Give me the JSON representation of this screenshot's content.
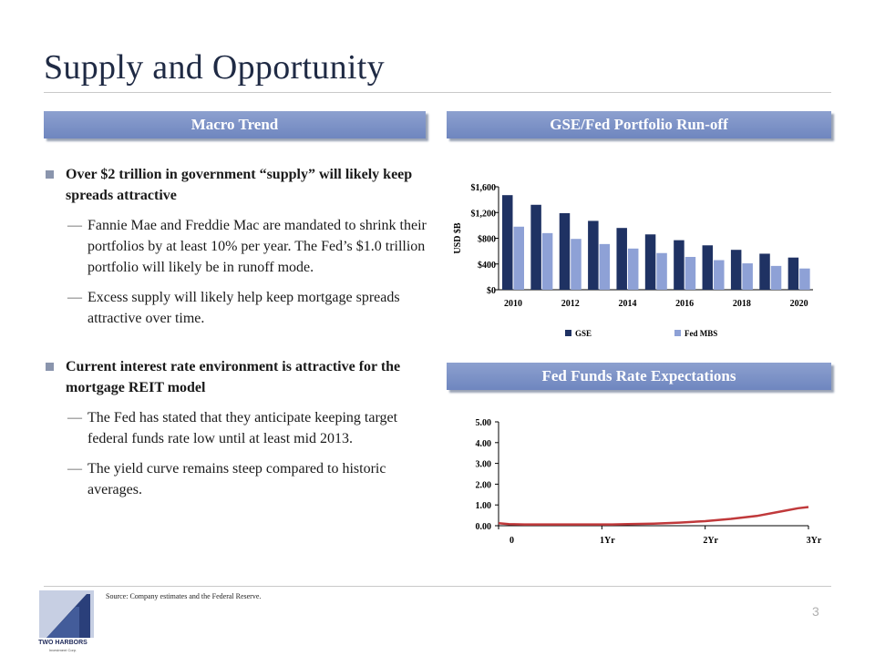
{
  "page": {
    "title": "Supply and Opportunity",
    "page_number": "3"
  },
  "left": {
    "header": "Macro Trend",
    "bullets": [
      {
        "text": "Over $2 trillion in government “supply” will likely keep spreads attractive",
        "subs": [
          "Fannie Mae and Freddie Mac are mandated to shrink their portfolios by at least 10% per year. The Fed’s $1.0 trillion portfolio will likely be in runoff mode.",
          "Excess supply will likely help keep mortgage spreads attractive over time."
        ]
      },
      {
        "text": "Current interest rate environment is attractive for the mortgage REIT model",
        "subs": [
          "The Fed has stated that they anticipate keeping target federal funds rate low until at least mid 2013.",
          "The yield curve remains steep compared to historic averages."
        ]
      }
    ]
  },
  "right": {
    "header1": "GSE/Fed Portfolio Run-off",
    "header2": "Fed Funds Rate Expectations"
  },
  "chart_data": [
    {
      "type": "bar",
      "ylabel": "USD $B",
      "ylim": [
        0,
        1600
      ],
      "yticks": [
        "$0",
        "$400",
        "$800",
        "$1,200",
        "$1,600"
      ],
      "categories": [
        "2010",
        "2011",
        "2012",
        "2013",
        "2014",
        "2015",
        "2016",
        "2017",
        "2018",
        "2019",
        "2020"
      ],
      "xtick_labels": [
        "2010",
        "2012",
        "2014",
        "2016",
        "2018",
        "2020"
      ],
      "series": [
        {
          "name": "GSE",
          "color": "#1f3263",
          "values": [
            1470,
            1320,
            1190,
            1070,
            960,
            860,
            770,
            690,
            620,
            560,
            500
          ]
        },
        {
          "name": "Fed MBS",
          "color": "#8ea1d6",
          "values": [
            980,
            880,
            790,
            710,
            640,
            570,
            510,
            460,
            410,
            370,
            330
          ]
        }
      ],
      "legend": "bottom"
    },
    {
      "type": "line",
      "ylim": [
        0,
        5
      ],
      "yticks": [
        "0.00",
        "1.00",
        "2.00",
        "3.00",
        "4.00",
        "5.00"
      ],
      "xtick_labels": [
        "0",
        "1Yr",
        "2Yr",
        "3Yr"
      ],
      "xlim": [
        0,
        3
      ],
      "series": [
        {
          "color": "#c0393b",
          "x": [
            0,
            0.1,
            0.25,
            0.5,
            0.75,
            1.0,
            1.1,
            1.25,
            1.5,
            1.75,
            2.0,
            2.25,
            2.5,
            2.75,
            2.9,
            3.0
          ],
          "y": [
            0.12,
            0.08,
            0.06,
            0.06,
            0.06,
            0.06,
            0.06,
            0.08,
            0.1,
            0.15,
            0.22,
            0.33,
            0.47,
            0.7,
            0.84,
            0.9
          ]
        }
      ]
    }
  ],
  "footer": {
    "source": "Source:     Company estimates and the Federal Reserve.",
    "logo_name": "TWO HARBORS",
    "logo_sub": "Investment Corp."
  }
}
